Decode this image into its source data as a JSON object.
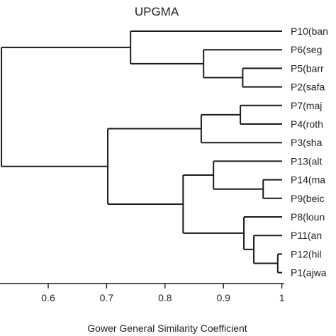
{
  "figure": {
    "title": "UPGMA",
    "xlabel": "Gower General Similarity Coefficient",
    "x_ticks": [
      {
        "value": 0.6,
        "label": "0.6"
      },
      {
        "value": 0.7,
        "label": "0.7"
      },
      {
        "value": 0.8,
        "label": "0.8"
      },
      {
        "value": 0.9,
        "label": "0.9"
      },
      {
        "value": 1.0,
        "label": "1"
      }
    ],
    "x_range": [
      0.52,
      1.0
    ]
  },
  "dendrogram": {
    "leaves": [
      {
        "id": "P10",
        "label": "P10(ban"
      },
      {
        "id": "P6",
        "label": "P6(seg"
      },
      {
        "id": "P5",
        "label": "P5(barr"
      },
      {
        "id": "P2",
        "label": "P2(safa"
      },
      {
        "id": "P7",
        "label": "P7(maj"
      },
      {
        "id": "P4",
        "label": "P4(roth"
      },
      {
        "id": "P3",
        "label": "P3(sha"
      },
      {
        "id": "P13",
        "label": "P13(alt"
      },
      {
        "id": "P14",
        "label": "P14(ma"
      },
      {
        "id": "P9",
        "label": "P9(beic"
      },
      {
        "id": "P8",
        "label": "P8(loun"
      },
      {
        "id": "P11",
        "label": "P11(an"
      },
      {
        "id": "P12",
        "label": "P12(hil"
      },
      {
        "id": "P1",
        "label": "P1(ajwa"
      }
    ],
    "merges": [
      {
        "id": "c1",
        "children": [
          "P5",
          "P2"
        ],
        "similarity": 0.933
      },
      {
        "id": "c2",
        "children": [
          "P6",
          "c1"
        ],
        "similarity": 0.866
      },
      {
        "id": "c3",
        "children": [
          "P10",
          "c2"
        ],
        "similarity": 0.741
      },
      {
        "id": "c4",
        "children": [
          "P7",
          "P4"
        ],
        "similarity": 0.929
      },
      {
        "id": "c5",
        "children": [
          "c4",
          "P3"
        ],
        "similarity": 0.862
      },
      {
        "id": "c6",
        "children": [
          "P14",
          "P9"
        ],
        "similarity": 0.968
      },
      {
        "id": "c7",
        "children": [
          "P13",
          "c6"
        ],
        "similarity": 0.883
      },
      {
        "id": "c8",
        "children": [
          "P12",
          "P1"
        ],
        "similarity": 0.993
      },
      {
        "id": "c9",
        "children": [
          "P11",
          "c8"
        ],
        "similarity": 0.952
      },
      {
        "id": "c10",
        "children": [
          "P8",
          "c9"
        ],
        "similarity": 0.935
      },
      {
        "id": "c11",
        "children": [
          "c7",
          "c10"
        ],
        "similarity": 0.831
      },
      {
        "id": "c12",
        "children": [
          "c5",
          "c11"
        ],
        "similarity": 0.702
      },
      {
        "id": "c13",
        "children": [
          "c3",
          "c12"
        ],
        "similarity": 0.52
      }
    ]
  }
}
